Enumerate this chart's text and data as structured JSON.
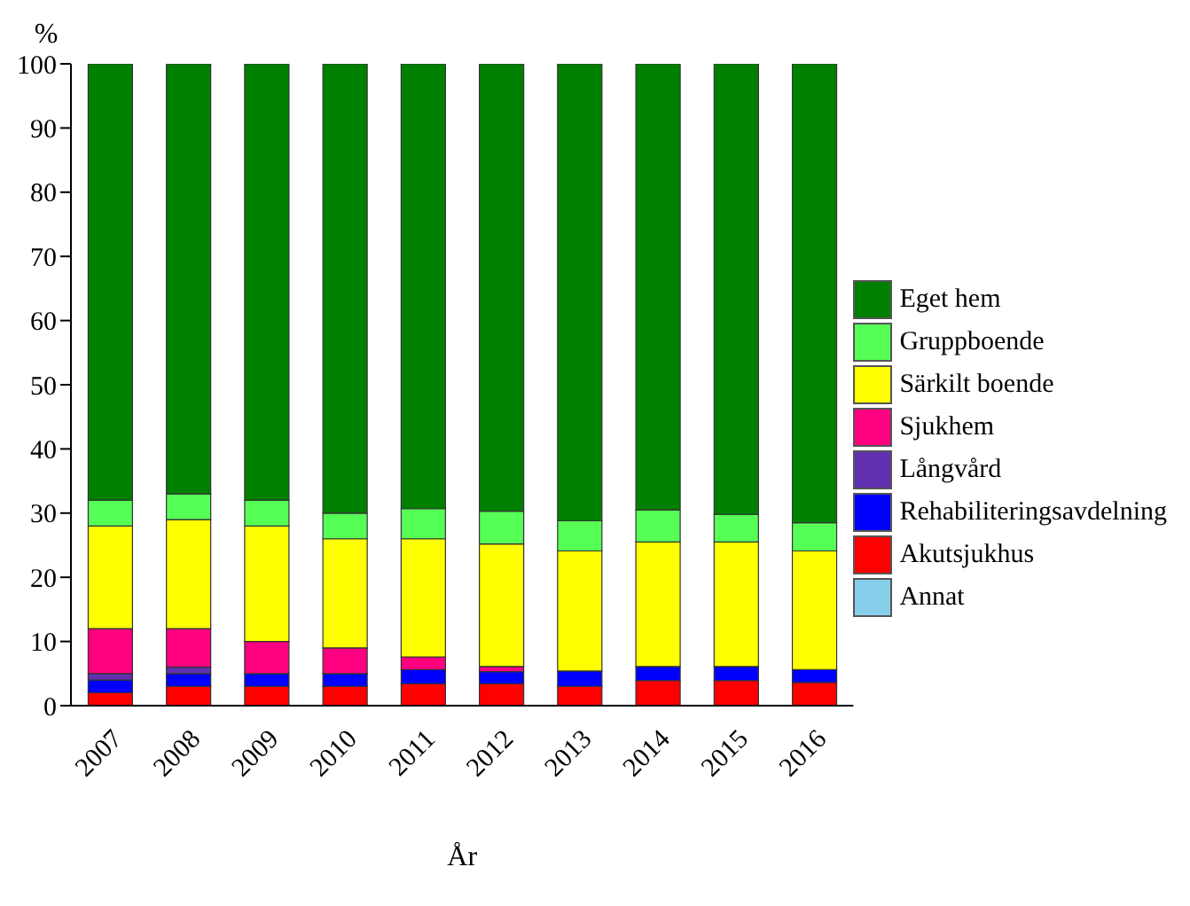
{
  "chart_data": {
    "type": "bar",
    "stacked": true,
    "xlabel": "År",
    "ylabel": "%",
    "categories": [
      "2007",
      "2008",
      "2009",
      "2010",
      "2011",
      "2012",
      "2013",
      "2014",
      "2015",
      "2016"
    ],
    "ylim": [
      0,
      100
    ],
    "yticks": [
      0,
      10,
      20,
      30,
      40,
      50,
      60,
      70,
      80,
      90,
      100
    ],
    "legend": "right",
    "grid": false,
    "series": [
      {
        "name": "Annat",
        "color": "#87ceeb",
        "values": [
          0,
          0,
          0,
          0,
          0,
          0,
          0,
          0,
          0,
          0
        ]
      },
      {
        "name": "Akutsjukhus",
        "color": "#ff0000",
        "values": [
          2,
          3,
          3,
          3,
          3.4,
          3.4,
          3,
          3.9,
          3.9,
          3.6
        ]
      },
      {
        "name": "Rehabiliteringsavdelning",
        "color": "#0000ff",
        "values": [
          2,
          2,
          2,
          2,
          2.2,
          1.9,
          2.4,
          2.2,
          2.2,
          2
        ]
      },
      {
        "name": "Långvård",
        "color": "#6030b0",
        "values": [
          1,
          1,
          0,
          0,
          0,
          0,
          0,
          0,
          0,
          0
        ]
      },
      {
        "name": "Sjukhem",
        "color": "#ff0080",
        "values": [
          7,
          6,
          5,
          4,
          2,
          0.8,
          0,
          0,
          0,
          0
        ]
      },
      {
        "name": "Särkilt boende",
        "color": "#ffff00",
        "values": [
          16,
          17,
          18,
          17,
          18.4,
          19.1,
          18.7,
          19.4,
          19.4,
          18.5
        ]
      },
      {
        "name": "Gruppboende",
        "color": "#55ff55",
        "values": [
          4,
          4,
          4,
          4,
          4.7,
          5.1,
          4.7,
          5,
          4.3,
          4.4
        ]
      },
      {
        "name": "Eget hem",
        "color": "#008000",
        "values": [
          68,
          67,
          68,
          70,
          69.3,
          69.7,
          71.2,
          69.5,
          70.2,
          71.5
        ]
      }
    ]
  }
}
